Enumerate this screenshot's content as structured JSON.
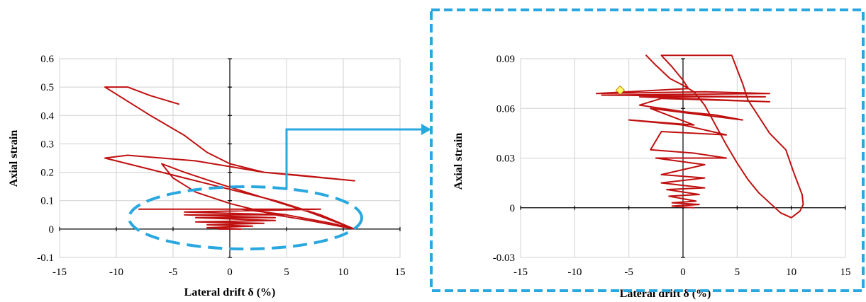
{
  "colors": {
    "curve": "#c01010",
    "highlight": "#29a8e0",
    "marker_fill": "#ffff66",
    "marker_stroke": "#b8860b"
  },
  "chart_data": [
    {
      "type": "line",
      "xlabel": "Lateral drift δ (%)",
      "ylabel": "Axial strain",
      "xlim": [
        -15,
        15
      ],
      "ylim": [
        -0.1,
        0.6
      ],
      "x_ticks": [
        "-15",
        "-10",
        "-5",
        "0",
        "5",
        "10",
        "15"
      ],
      "y_ticks": [
        "-0.1",
        "0",
        "0.1",
        "0.2",
        "0.3",
        "0.4",
        "0.5",
        "0.6"
      ],
      "grid": true,
      "series": [
        {
          "points": [
            [
              -4.5,
              0.44
            ],
            [
              -7,
              0.47
            ],
            [
              -9,
              0.5
            ],
            [
              -11,
              0.5
            ],
            [
              -9,
              0.45
            ],
            [
              -7,
              0.4
            ],
            [
              -4,
              0.33
            ],
            [
              -2,
              0.27
            ],
            [
              0,
              0.23
            ],
            [
              3,
              0.2
            ],
            [
              6,
              0.19
            ],
            [
              11,
              0.17
            ],
            [
              3,
              0.2
            ],
            [
              0,
              0.22
            ],
            [
              -3,
              0.24
            ],
            [
              -6,
              0.25
            ],
            [
              -9,
              0.26
            ],
            [
              -11,
              0.25
            ],
            [
              -8,
              0.22
            ],
            [
              -4,
              0.18
            ],
            [
              0,
              0.14
            ],
            [
              4,
              0.1
            ],
            [
              8,
              0.05
            ],
            [
              11,
              0.0
            ],
            [
              7,
              0.03
            ],
            [
              4,
              0.05
            ],
            [
              0,
              0.09
            ],
            [
              -3,
              0.13
            ],
            [
              -5,
              0.18
            ],
            [
              -6,
              0.23
            ],
            [
              -4,
              0.2
            ],
            [
              -1,
              0.16
            ],
            [
              3,
              0.11
            ],
            [
              7,
              0.06
            ],
            [
              11,
              0.0
            ],
            [
              9,
              0.02
            ],
            [
              5,
              0.05
            ],
            [
              1,
              0.07
            ],
            [
              -8,
              0.07
            ],
            [
              8,
              0.07
            ],
            [
              -4,
              0.06
            ],
            [
              5,
              0.05
            ],
            [
              -4,
              0.05
            ],
            [
              4,
              0.04
            ],
            [
              -3,
              0.04
            ],
            [
              4,
              0.03
            ],
            [
              -3,
              0.025
            ],
            [
              3,
              0.02
            ],
            [
              -2,
              0.015
            ],
            [
              2,
              0.01
            ],
            [
              -2,
              0.005
            ],
            [
              1,
              0.0
            ],
            [
              -1,
              0.0
            ]
          ]
        }
      ]
    },
    {
      "type": "line",
      "xlabel": "Lateral drift δ (%)",
      "ylabel": "Axial strain",
      "xlim": [
        -15,
        15
      ],
      "ylim": [
        -0.03,
        0.09
      ],
      "x_ticks": [
        "-15",
        "-10",
        "-5",
        "0",
        "5",
        "10",
        "15"
      ],
      "y_ticks": [
        "-0.03",
        "0",
        "0.03",
        "0.06",
        "0.09"
      ],
      "grid": true,
      "series": [
        {
          "points": [
            [
              -3.4,
              0.092
            ],
            [
              -2.5,
              0.086
            ],
            [
              -1.2,
              0.078
            ],
            [
              0,
              0.074
            ],
            [
              1,
              0.07
            ],
            [
              2,
              0.062
            ],
            [
              3,
              0.05
            ],
            [
              4,
              0.038
            ],
            [
              5,
              0.027
            ],
            [
              6,
              0.017
            ],
            [
              7,
              0.009
            ],
            [
              9,
              -0.003
            ],
            [
              10,
              -0.006
            ],
            [
              10.8,
              -0.002
            ],
            [
              11.1,
              0.002
            ],
            [
              11,
              0.008
            ],
            [
              10.3,
              0.02
            ],
            [
              9.5,
              0.035
            ],
            [
              8,
              0.045
            ],
            [
              7,
              0.055
            ],
            [
              6,
              0.065
            ],
            [
              5.5,
              0.075
            ],
            [
              4.5,
              0.092
            ],
            [
              -2,
              0.092
            ],
            [
              -1,
              0.085
            ],
            [
              0,
              0.077
            ],
            [
              0.5,
              0.072
            ],
            [
              -8,
              0.069
            ],
            [
              2,
              0.07
            ],
            [
              8,
              0.069
            ],
            [
              -7.5,
              0.068
            ],
            [
              7.6,
              0.067
            ],
            [
              -4,
              0.067
            ],
            [
              8,
              0.064
            ],
            [
              -2,
              0.066
            ],
            [
              -4,
              0.062
            ],
            [
              0,
              0.058
            ],
            [
              3,
              0.056
            ],
            [
              5.5,
              0.053
            ],
            [
              -3,
              0.06
            ],
            [
              1,
              0.05
            ],
            [
              -5,
              0.053
            ],
            [
              0,
              0.05
            ],
            [
              4,
              0.044
            ],
            [
              -2,
              0.046
            ],
            [
              -3,
              0.035
            ],
            [
              1,
              0.033
            ],
            [
              4,
              0.03
            ],
            [
              -2.5,
              0.03
            ],
            [
              2,
              0.026
            ],
            [
              -2,
              0.02
            ],
            [
              2,
              0.018
            ],
            [
              -2,
              0.015
            ],
            [
              2,
              0.012
            ],
            [
              -1.5,
              0.011
            ],
            [
              1.5,
              0.008
            ],
            [
              -1.3,
              0.007
            ],
            [
              1.2,
              0.004
            ],
            [
              -1,
              0.003
            ],
            [
              1.5,
              0.002
            ],
            [
              -1,
              0.001
            ],
            [
              1,
              0.0
            ]
          ]
        },
        {
          "points": [
            [
              -5.8,
              0.071
            ]
          ]
        }
      ]
    }
  ]
}
